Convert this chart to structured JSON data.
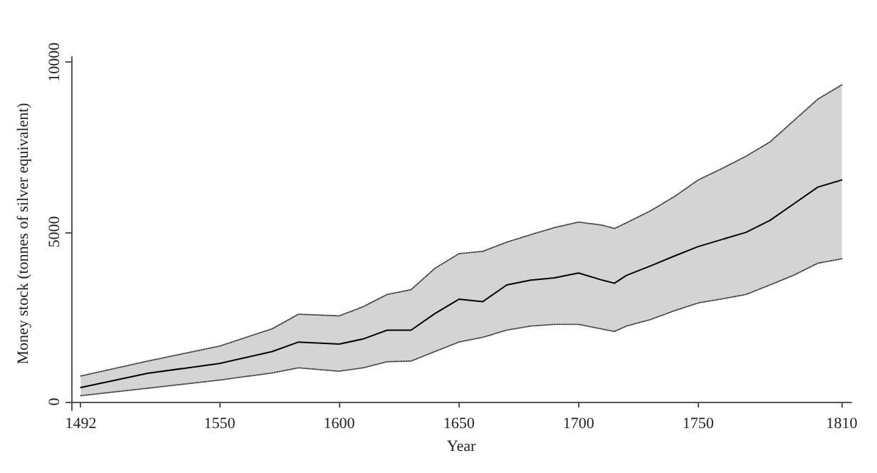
{
  "chart_data": {
    "type": "line",
    "xlabel": "Year",
    "ylabel": "Money stock (tonnes of silver equivalent)",
    "x": [
      1492,
      1520,
      1550,
      1572,
      1583,
      1600,
      1610,
      1620,
      1630,
      1640,
      1650,
      1660,
      1670,
      1680,
      1690,
      1700,
      1710,
      1715,
      1720,
      1730,
      1740,
      1750,
      1760,
      1770,
      1780,
      1790,
      1800,
      1810
    ],
    "series": [
      {
        "color": "#000000",
        "line_style": "solid",
        "values": [
          420,
          840,
          1130,
          1480,
          1760,
          1700,
          1850,
          2110,
          2110,
          2600,
          3020,
          2950,
          3440,
          3580,
          3650,
          3790,
          3580,
          3490,
          3720,
          4000,
          4290,
          4570,
          4780,
          4990,
          5340,
          5830,
          6320,
          6530
        ],
        "upper": [
          760,
          1200,
          1640,
          2150,
          2580,
          2530,
          2800,
          3160,
          3300,
          3930,
          4360,
          4430,
          4700,
          4920,
          5130,
          5290,
          5200,
          5100,
          5270,
          5620,
          6040,
          6530,
          6870,
          7230,
          7650,
          8280,
          8910,
          9330
        ],
        "lower": [
          180,
          400,
          640,
          850,
          1000,
          900,
          1000,
          1180,
          1200,
          1480,
          1760,
          1900,
          2110,
          2230,
          2280,
          2280,
          2140,
          2070,
          2230,
          2420,
          2680,
          2910,
          3030,
          3160,
          3440,
          3730,
          4080,
          4210
        ]
      },
      {
        "color": "#444444",
        "line_style": "dotted",
        "values": [
          760,
          1200,
          1640,
          2150,
          2580,
          2530,
          2800,
          3160,
          3300,
          3930,
          4360,
          4430,
          4700,
          4920,
          5130,
          5290,
          5200,
          5100,
          5270,
          5620,
          6040,
          6530,
          6870,
          7230,
          7650,
          8280,
          8910,
          9330
        ]
      },
      {
        "color": "#444444",
        "line_style": "dotted",
        "values": [
          180,
          400,
          640,
          850,
          1000,
          900,
          1000,
          1180,
          1200,
          1480,
          1760,
          1900,
          2110,
          2230,
          2280,
          2280,
          2140,
          2070,
          2230,
          2420,
          2680,
          2910,
          3030,
          3160,
          3440,
          3730,
          4080,
          4210
        ]
      }
    ],
    "xlim": [
      1488,
      1814
    ],
    "xticks": [
      1492,
      1550,
      1600,
      1650,
      1700,
      1750,
      1810
    ],
    "ylim": [
      -250,
      10150
    ],
    "yticks": [
      0,
      5000,
      10000
    ],
    "grid": false,
    "marker": "none"
  }
}
